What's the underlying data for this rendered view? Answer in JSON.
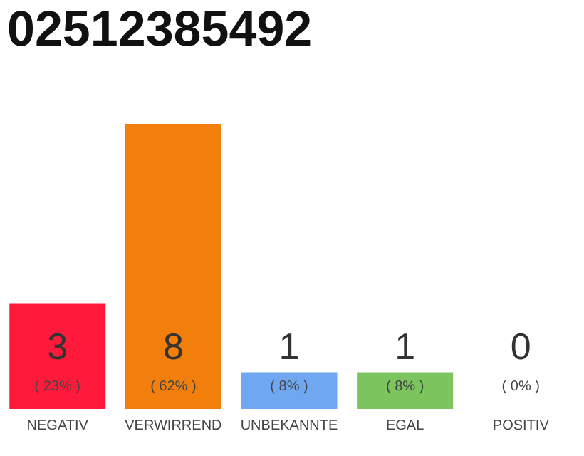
{
  "chart_data": {
    "type": "bar",
    "title": "02512385492",
    "categories": [
      "NEGATIV",
      "VERWIRREND",
      "UNBEKANNTE",
      "EGAL",
      "POSITIV"
    ],
    "values": [
      23,
      62,
      8,
      8,
      0
    ],
    "colors": [
      "#ff1a3c",
      "#f27f0c",
      "#6fa8f0",
      "#7cc55e",
      "#dddddd"
    ],
    "value_labels": [
      "( 23% )",
      "( 62% )",
      "( 8% )",
      "( 8% )",
      "( 0% )"
    ],
    "annotations": [
      "3",
      "8",
      "1",
      "1",
      "0"
    ]
  }
}
